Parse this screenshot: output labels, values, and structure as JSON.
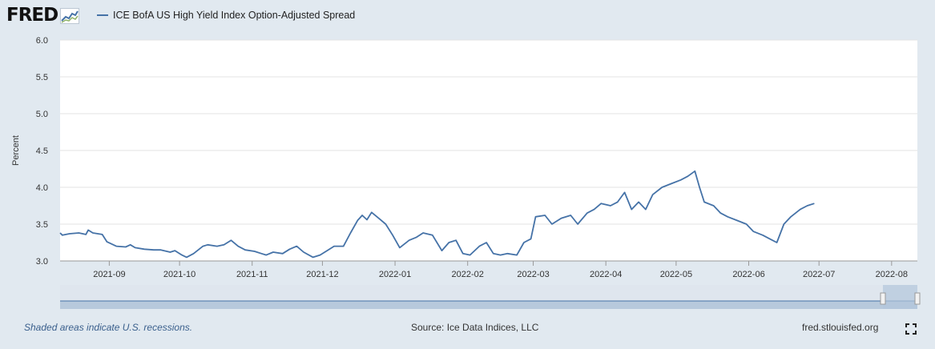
{
  "header": {
    "logo_text": "FRED",
    "legend_label": "ICE BofA US High Yield Index Option-Adjusted Spread",
    "series_color": "#4572a7"
  },
  "footer": {
    "recession_note": "Shaded areas indicate U.S. recessions.",
    "source": "Source: Ice Data Indices, LLC",
    "site": "fred.stlouisfed.org",
    "fullscreen_icon": "fullscreen-icon"
  },
  "chart_data": {
    "type": "line",
    "ylabel": "Percent",
    "ylim": [
      3.0,
      6.0
    ],
    "yticks": [
      "3.0",
      "3.5",
      "4.0",
      "4.5",
      "5.0",
      "5.5",
      "6.0"
    ],
    "xticks": [
      {
        "label": "2021-09",
        "date": "2021-09-01"
      },
      {
        "label": "2021-10",
        "date": "2021-10-01"
      },
      {
        "label": "2021-11",
        "date": "2021-11-01"
      },
      {
        "label": "2021-12",
        "date": "2021-12-01"
      },
      {
        "label": "2022-01",
        "date": "2022-01-01"
      },
      {
        "label": "2022-02",
        "date": "2022-02-01"
      },
      {
        "label": "2022-03",
        "date": "2022-03-01"
      },
      {
        "label": "2022-04",
        "date": "2022-04-01"
      },
      {
        "label": "2022-05",
        "date": "2022-05-01"
      },
      {
        "label": "2022-06",
        "date": "2022-06-01"
      },
      {
        "label": "2022-07",
        "date": "2022-07-01"
      },
      {
        "label": "2022-08",
        "date": "2022-08-01"
      }
    ],
    "x_range": [
      "2021-08-11",
      "2022-08-12"
    ],
    "series": [
      {
        "values": [
          [
            "2021-08-11",
            3.38
          ],
          [
            "2021-08-12",
            3.35
          ],
          [
            "2021-08-15",
            3.37
          ],
          [
            "2021-08-19",
            3.38
          ],
          [
            "2021-08-22",
            3.36
          ],
          [
            "2021-08-23",
            3.42
          ],
          [
            "2021-08-25",
            3.38
          ],
          [
            "2021-08-29",
            3.36
          ],
          [
            "2021-08-31",
            3.26
          ],
          [
            "2021-09-04",
            3.2
          ],
          [
            "2021-09-08",
            3.19
          ],
          [
            "2021-09-10",
            3.22
          ],
          [
            "2021-09-12",
            3.18
          ],
          [
            "2021-09-16",
            3.16
          ],
          [
            "2021-09-20",
            3.15
          ],
          [
            "2021-09-23",
            3.15
          ],
          [
            "2021-09-27",
            3.12
          ],
          [
            "2021-09-29",
            3.14
          ],
          [
            "2021-10-02",
            3.08
          ],
          [
            "2021-10-04",
            3.05
          ],
          [
            "2021-10-07",
            3.1
          ],
          [
            "2021-10-11",
            3.2
          ],
          [
            "2021-10-13",
            3.22
          ],
          [
            "2021-10-17",
            3.2
          ],
          [
            "2021-10-20",
            3.22
          ],
          [
            "2021-10-23",
            3.28
          ],
          [
            "2021-10-26",
            3.2
          ],
          [
            "2021-10-29",
            3.15
          ],
          [
            "2021-11-02",
            3.13
          ],
          [
            "2021-11-05",
            3.1
          ],
          [
            "2021-11-07",
            3.08
          ],
          [
            "2021-11-10",
            3.12
          ],
          [
            "2021-11-14",
            3.1
          ],
          [
            "2021-11-17",
            3.16
          ],
          [
            "2021-11-20",
            3.2
          ],
          [
            "2021-11-23",
            3.12
          ],
          [
            "2021-11-27",
            3.05
          ],
          [
            "2021-11-30",
            3.08
          ],
          [
            "2021-12-03",
            3.14
          ],
          [
            "2021-12-06",
            3.2
          ],
          [
            "2021-12-10",
            3.2
          ],
          [
            "2021-12-13",
            3.38
          ],
          [
            "2021-12-16",
            3.55
          ],
          [
            "2021-12-18",
            3.62
          ],
          [
            "2021-12-20",
            3.56
          ],
          [
            "2021-12-22",
            3.66
          ],
          [
            "2021-12-25",
            3.58
          ],
          [
            "2021-12-28",
            3.5
          ],
          [
            "2021-12-31",
            3.35
          ],
          [
            "2022-01-03",
            3.18
          ],
          [
            "2022-01-07",
            3.28
          ],
          [
            "2022-01-10",
            3.32
          ],
          [
            "2022-01-13",
            3.38
          ],
          [
            "2022-01-17",
            3.35
          ],
          [
            "2022-01-21",
            3.14
          ],
          [
            "2022-01-24",
            3.25
          ],
          [
            "2022-01-27",
            3.28
          ],
          [
            "2022-01-30",
            3.1
          ],
          [
            "2022-02-02",
            3.08
          ],
          [
            "2022-02-06",
            3.2
          ],
          [
            "2022-02-09",
            3.25
          ],
          [
            "2022-02-12",
            3.1
          ],
          [
            "2022-02-15",
            3.08
          ],
          [
            "2022-02-18",
            3.1
          ],
          [
            "2022-02-22",
            3.08
          ],
          [
            "2022-02-25",
            3.25
          ],
          [
            "2022-02-28",
            3.3
          ],
          [
            "2022-03-02",
            3.6
          ],
          [
            "2022-03-06",
            3.62
          ],
          [
            "2022-03-09",
            3.5
          ],
          [
            "2022-03-13",
            3.58
          ],
          [
            "2022-03-17",
            3.62
          ],
          [
            "2022-03-20",
            3.5
          ],
          [
            "2022-03-24",
            3.65
          ],
          [
            "2022-03-27",
            3.7
          ],
          [
            "2022-03-30",
            3.78
          ],
          [
            "2022-04-03",
            3.75
          ],
          [
            "2022-04-06",
            3.8
          ],
          [
            "2022-04-09",
            3.93
          ],
          [
            "2022-04-12",
            3.7
          ],
          [
            "2022-04-15",
            3.8
          ],
          [
            "2022-04-18",
            3.7
          ],
          [
            "2022-04-21",
            3.9
          ],
          [
            "2022-04-25",
            4.0
          ],
          [
            "2022-04-29",
            4.05
          ],
          [
            "2022-05-03",
            4.1
          ],
          [
            "2022-05-06",
            4.15
          ],
          [
            "2022-05-09",
            4.22
          ],
          [
            "2022-05-11",
            4.0
          ],
          [
            "2022-05-13",
            3.8
          ],
          [
            "2022-05-17",
            3.75
          ],
          [
            "2022-05-20",
            3.65
          ],
          [
            "2022-05-23",
            3.6
          ],
          [
            "2022-05-27",
            3.55
          ],
          [
            "2022-05-31",
            3.5
          ],
          [
            "2022-06-03",
            3.4
          ],
          [
            "2022-06-07",
            3.35
          ],
          [
            "2022-06-10",
            3.3
          ],
          [
            "2022-06-13",
            3.25
          ],
          [
            "2022-06-16",
            3.5
          ],
          [
            "2022-06-19",
            3.6
          ],
          [
            "2022-06-23",
            3.7
          ],
          [
            "2022-06-26",
            3.75
          ],
          [
            "2022-06-29",
            3.78
          ]
        ]
      }
    ]
  }
}
